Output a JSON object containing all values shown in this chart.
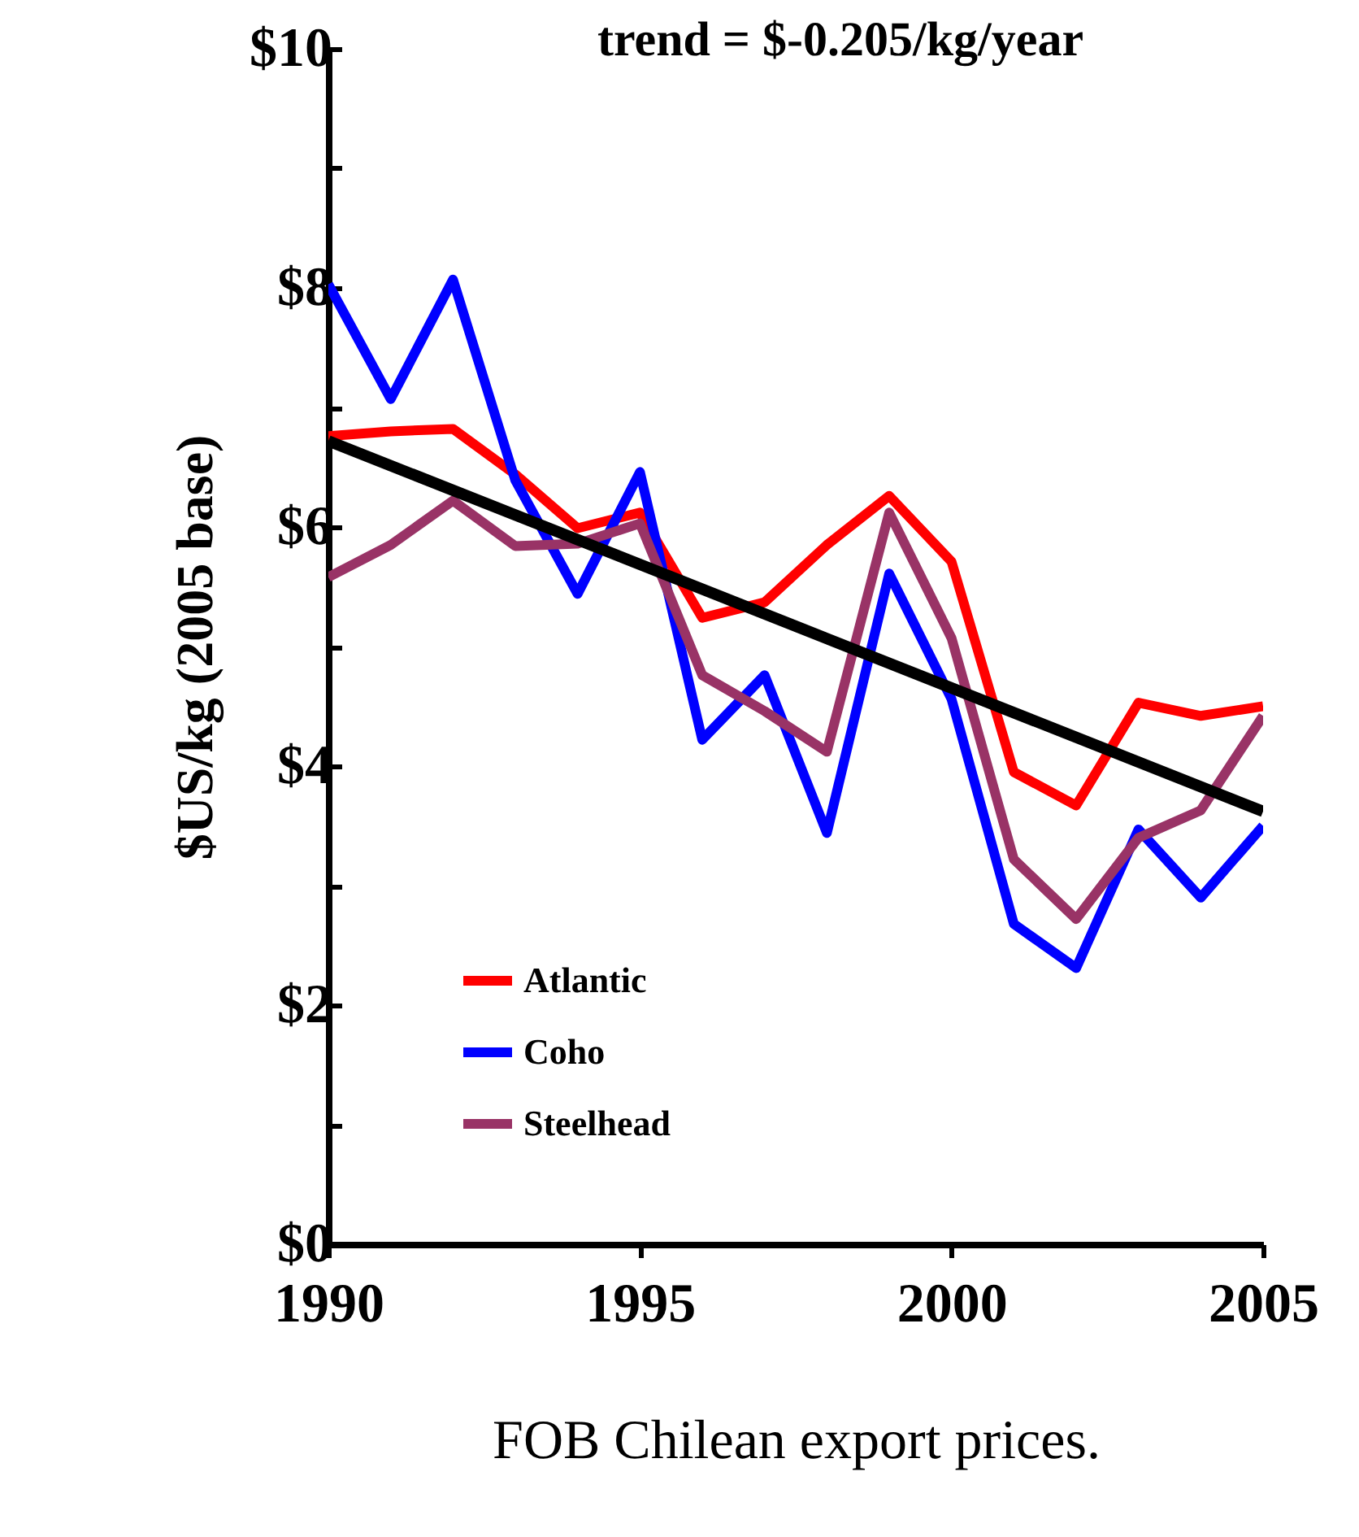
{
  "chart_data": {
    "type": "line",
    "xlabel": "FOB Chilean export prices.",
    "ylabel": "$US/kg (2005 base)",
    "annotations": [
      "trend = $-0.205/kg/year"
    ],
    "x": [
      1990,
      1991,
      1992,
      1993,
      1994,
      1995,
      1996,
      1997,
      1998,
      1999,
      2000,
      2001,
      2002,
      2003,
      2004,
      2005
    ],
    "series": [
      {
        "name": "Atlantic",
        "color": "#ff0000",
        "values": [
          6.76,
          6.8,
          6.82,
          6.44,
          5.99,
          6.12,
          5.24,
          5.37,
          5.85,
          6.26,
          5.71,
          3.95,
          3.67,
          4.53,
          4.42,
          4.5
        ]
      },
      {
        "name": "Coho",
        "color": "#0000ff",
        "values": [
          8.03,
          7.07,
          8.07,
          6.39,
          5.44,
          6.46,
          4.22,
          4.76,
          3.44,
          5.61,
          4.56,
          2.68,
          2.31,
          3.47,
          2.9,
          3.5
        ]
      },
      {
        "name": "Steelhead",
        "color": "#993366",
        "values": [
          5.58,
          5.85,
          6.22,
          5.84,
          5.86,
          6.03,
          4.76,
          4.46,
          4.12,
          6.12,
          5.07,
          3.22,
          2.72,
          3.4,
          3.63,
          4.42
        ]
      },
      {
        "type": "line",
        "color": "#000000",
        "x": [
          1990,
          2005
        ],
        "values": [
          6.72,
          3.62
        ]
      }
    ],
    "xlim": [
      1990,
      2005
    ],
    "xticks": [
      1990,
      1995,
      2000,
      2005
    ],
    "ylim": [
      0,
      10
    ],
    "yticks": [
      {
        "value": 0,
        "label": "$0"
      },
      {
        "value": 1,
        "label": null
      },
      {
        "value": 2,
        "label": "$2"
      },
      {
        "value": 3,
        "label": null
      },
      {
        "value": 4,
        "label": "$4"
      },
      {
        "value": 5,
        "label": null
      },
      {
        "value": 6,
        "label": "$6"
      },
      {
        "value": 7,
        "label": null
      },
      {
        "value": 8,
        "label": "$8"
      },
      {
        "value": 9,
        "label": null
      },
      {
        "value": 10,
        "label": "$10"
      }
    ],
    "grid": false,
    "legend": "bottom left"
  }
}
